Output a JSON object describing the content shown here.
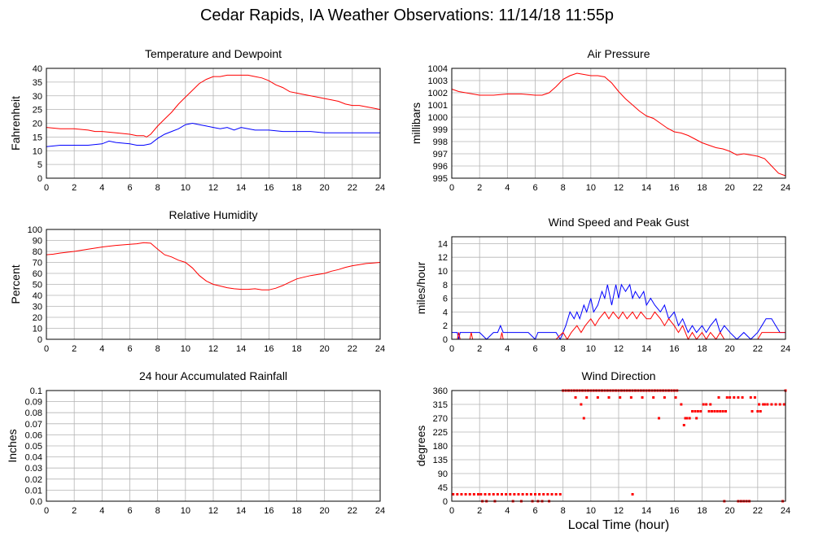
{
  "title": "Cedar Rapids, IA Weather Observations: 11/14/18 11:55p",
  "xlabel_common": "Local Time (hour)",
  "chart_data": [
    {
      "type": "line",
      "title": "Temperature and Dewpoint",
      "ylabel": "Fahrenheit",
      "xlabel": "",
      "xlim": [
        0,
        24
      ],
      "xticks": [
        0,
        2,
        4,
        6,
        8,
        10,
        12,
        14,
        16,
        18,
        20,
        22,
        24
      ],
      "ylim": [
        0,
        40
      ],
      "yticks": [
        0,
        5,
        10,
        15,
        20,
        25,
        30,
        35,
        40
      ],
      "grid": true,
      "series": [
        {
          "color": "#ff0000",
          "x": [
            0,
            1,
            2,
            3,
            3.5,
            4,
            5,
            6,
            6.5,
            7,
            7.2,
            7.5,
            8,
            8.5,
            9,
            9.5,
            10,
            10.5,
            11,
            11.5,
            12,
            12.5,
            13,
            13.5,
            14,
            14.5,
            15,
            15.5,
            16,
            16.5,
            17,
            17.5,
            18,
            18.5,
            19,
            19.5,
            20,
            20.5,
            21,
            21.5,
            22,
            22.5,
            23,
            23.5,
            24
          ],
          "y": [
            18.5,
            18,
            18,
            17.5,
            17,
            17,
            16.5,
            16,
            15.5,
            15.5,
            15,
            16,
            19,
            21.5,
            24,
            27,
            29.5,
            32,
            34.5,
            36,
            37,
            37,
            37.5,
            37.5,
            37.5,
            37.5,
            37,
            36.5,
            35.5,
            34,
            33,
            31.5,
            31,
            30.5,
            30,
            29.5,
            29,
            28.5,
            28,
            27,
            26.5,
            26.5,
            26,
            25.5,
            25
          ]
        },
        {
          "color": "#0000ff",
          "x": [
            0,
            1,
            2,
            3,
            4,
            4.5,
            5,
            6,
            6.5,
            7,
            7.5,
            8,
            8.5,
            9,
            9.5,
            10,
            10.5,
            11,
            11.5,
            12,
            12.5,
            13,
            13.5,
            14,
            14.5,
            15,
            16,
            17,
            18,
            19,
            20,
            21,
            22,
            23,
            24
          ],
          "y": [
            11.5,
            12,
            12,
            12,
            12.5,
            13.5,
            13,
            12.5,
            12,
            12,
            12.5,
            14.5,
            16,
            17,
            18,
            19.5,
            20,
            19.5,
            19,
            18.5,
            18,
            18.5,
            17.5,
            18.5,
            18,
            17.5,
            17.5,
            17,
            17,
            17,
            16.5,
            16.5,
            16.5,
            16.5,
            16.5
          ]
        }
      ]
    },
    {
      "type": "line",
      "title": "Air Pressure",
      "ylabel": "millibars",
      "xlabel": "",
      "xlim": [
        0,
        24
      ],
      "xticks": [
        0,
        2,
        4,
        6,
        8,
        10,
        12,
        14,
        16,
        18,
        20,
        22,
        24
      ],
      "ylim": [
        995,
        1004
      ],
      "yticks": [
        995,
        996,
        997,
        998,
        999,
        1000,
        1001,
        1002,
        1003,
        1004
      ],
      "grid": true,
      "series": [
        {
          "color": "#ff0000",
          "x": [
            0,
            0.5,
            1,
            2,
            3,
            4,
            5,
            6,
            6.5,
            7,
            7.5,
            8,
            8.5,
            9,
            9.5,
            10,
            10.5,
            11,
            11.5,
            12,
            12.5,
            13,
            13.5,
            14,
            14.5,
            15,
            15.5,
            16,
            16.5,
            17,
            17.5,
            18,
            18.5,
            19,
            19.5,
            20,
            20.5,
            21,
            21.5,
            22,
            22.5,
            23,
            23.5,
            24
          ],
          "y": [
            1002.3,
            1002.1,
            1002.0,
            1001.8,
            1001.8,
            1001.9,
            1001.9,
            1001.8,
            1001.8,
            1002.0,
            1002.5,
            1003.1,
            1003.4,
            1003.6,
            1003.5,
            1003.4,
            1003.4,
            1003.3,
            1002.8,
            1002.1,
            1001.5,
            1001.0,
            1000.5,
            1000.1,
            999.9,
            999.5,
            999.1,
            998.8,
            998.7,
            998.5,
            998.2,
            997.9,
            997.7,
            997.5,
            997.4,
            997.2,
            996.9,
            997.0,
            996.9,
            996.8,
            996.6,
            996.0,
            995.4,
            995.2
          ]
        }
      ]
    },
    {
      "type": "line",
      "title": "Relative Humidity",
      "ylabel": "Percent",
      "xlabel": "",
      "xlim": [
        0,
        24
      ],
      "xticks": [
        0,
        2,
        4,
        6,
        8,
        10,
        12,
        14,
        16,
        18,
        20,
        22,
        24
      ],
      "ylim": [
        0,
        100
      ],
      "yticks": [
        0,
        10,
        20,
        30,
        40,
        50,
        60,
        70,
        80,
        90,
        100
      ],
      "grid": true,
      "series": [
        {
          "color": "#ff0000",
          "x": [
            0,
            0.5,
            1,
            2,
            3,
            4,
            5,
            6,
            6.5,
            7,
            7.5,
            8,
            8.5,
            9,
            9.5,
            10,
            10.5,
            11,
            11.5,
            12,
            12.5,
            13,
            13.5,
            14,
            14.5,
            15,
            15.5,
            16,
            16.5,
            17,
            17.5,
            18,
            18.5,
            19,
            19.5,
            20,
            20.5,
            21,
            21.5,
            22,
            22.5,
            23,
            23.5,
            24
          ],
          "y": [
            77,
            77.5,
            78.5,
            80,
            82,
            84,
            85.5,
            86.5,
            87,
            88,
            87.5,
            82,
            77,
            75,
            72,
            70,
            65,
            58,
            53,
            50,
            48.5,
            47,
            46,
            45.5,
            45.5,
            46,
            45,
            45,
            46.5,
            49,
            52,
            55,
            56.5,
            58,
            59,
            60,
            62,
            63.5,
            65.5,
            67,
            68,
            69,
            69.5,
            70
          ]
        }
      ]
    },
    {
      "type": "line",
      "title": "Wind Speed and Peak Gust",
      "ylabel": "miles/hour",
      "xlabel": "",
      "xlim": [
        0,
        24
      ],
      "xticks": [
        0,
        2,
        4,
        6,
        8,
        10,
        12,
        14,
        16,
        18,
        20,
        22,
        24
      ],
      "ylim": [
        0,
        15
      ],
      "yticks": [
        0,
        2,
        4,
        6,
        8,
        10,
        12,
        14
      ],
      "grid": true,
      "series": [
        {
          "color": "#0000ff",
          "x": [
            0,
            0.4,
            0.5,
            0.6,
            1,
            1.5,
            2,
            2.5,
            3,
            3.3,
            3.5,
            3.7,
            4,
            4.5,
            5,
            5.5,
            6,
            6.2,
            6.5,
            7,
            7.5,
            7.8,
            8,
            8.2,
            8.5,
            8.8,
            9,
            9.2,
            9.5,
            9.7,
            10,
            10.2,
            10.5,
            10.8,
            11,
            11.2,
            11.5,
            11.8,
            12,
            12.2,
            12.5,
            12.8,
            13,
            13.2,
            13.5,
            13.8,
            14,
            14.3,
            14.6,
            15,
            15.3,
            15.6,
            16,
            16.3,
            16.6,
            17,
            17.3,
            17.6,
            18,
            18.3,
            18.6,
            19,
            19.3,
            19.6,
            20,
            20.5,
            21,
            21.5,
            22,
            22.3,
            22.6,
            23,
            23.3,
            23.6,
            24
          ],
          "y": [
            1,
            1,
            0,
            1,
            1,
            1,
            1,
            0,
            1,
            1,
            2,
            1,
            1,
            1,
            1,
            1,
            0,
            1,
            1,
            1,
            1,
            0,
            1,
            2,
            4,
            3,
            4,
            3,
            5,
            4,
            6,
            4,
            5,
            7,
            6,
            8,
            5,
            8,
            6,
            8,
            7,
            8,
            6,
            7,
            6,
            7,
            5,
            6,
            5,
            4,
            5,
            3,
            4,
            2,
            3,
            1,
            2,
            1,
            2,
            1,
            2,
            3,
            1,
            2,
            1,
            0,
            1,
            0,
            1,
            2,
            3,
            3,
            2,
            1,
            1
          ]
        },
        {
          "color": "#ff0000",
          "x": [
            0,
            0.4,
            0.5,
            0.6,
            1,
            1.3,
            1.4,
            1.5,
            2,
            3,
            3.5,
            3.6,
            3.7,
            4,
            5,
            6,
            7,
            7.5,
            8,
            8.3,
            8.6,
            9,
            9.3,
            9.6,
            10,
            10.3,
            10.6,
            11,
            11.3,
            11.6,
            12,
            12.3,
            12.6,
            13,
            13.3,
            13.6,
            14,
            14.3,
            14.6,
            15,
            15.3,
            15.6,
            16,
            16.3,
            16.6,
            17,
            17.3,
            17.6,
            18,
            18.3,
            18.6,
            19,
            19.3,
            19.6,
            20,
            21,
            22,
            22.3,
            22.6,
            23,
            23.5,
            24
          ],
          "y": [
            0,
            0,
            1,
            0,
            0,
            0,
            1,
            0,
            0,
            0,
            0,
            1,
            0,
            0,
            0,
            0,
            0,
            0,
            1,
            0,
            1,
            2,
            1,
            2,
            3,
            2,
            3,
            4,
            3,
            4,
            3,
            4,
            3,
            4,
            3,
            4,
            3,
            3,
            4,
            3,
            2,
            3,
            2,
            1,
            2,
            0,
            1,
            0,
            1,
            0,
            1,
            0,
            1,
            0,
            0,
            0,
            0,
            1,
            1,
            1,
            1,
            1
          ]
        }
      ]
    },
    {
      "type": "line",
      "title": "24 hour Accumulated Rainfall",
      "ylabel": "Inches",
      "xlabel": "",
      "xlim": [
        0,
        24
      ],
      "xticks": [
        0,
        2,
        4,
        6,
        8,
        10,
        12,
        14,
        16,
        18,
        20,
        22,
        24
      ],
      "ylim": [
        0,
        0.1
      ],
      "yticks": [
        0.0,
        0.01,
        0.02,
        0.03,
        0.04,
        0.05,
        0.06,
        0.07,
        0.08,
        0.09,
        0.1
      ],
      "ytick_labels": [
        "0.0",
        "0.01",
        "0.02",
        "0.03",
        "0.04",
        "0.05",
        "0.06",
        "0.07",
        "0.08",
        "0.09",
        "0.1"
      ],
      "grid": true,
      "series": [
        {
          "color": "#ff0000",
          "x": [
            0,
            24
          ],
          "y": [
            0,
            0
          ]
        }
      ]
    },
    {
      "type": "scatter",
      "title": "Wind Direction",
      "ylabel": "degrees",
      "xlabel": "Local Time (hour)",
      "xlim": [
        0,
        24
      ],
      "xticks": [
        0,
        2,
        4,
        6,
        8,
        10,
        12,
        14,
        16,
        18,
        20,
        22,
        24
      ],
      "ylim": [
        0,
        360
      ],
      "yticks": [
        0,
        45,
        90,
        135,
        180,
        225,
        270,
        315,
        360
      ],
      "grid": true,
      "series": [
        {
          "color": "#ff0000",
          "x": [
            0.1,
            0.4,
            0.7,
            1.0,
            1.3,
            1.6,
            1.9,
            2.1,
            2.4,
            2.7,
            3.0,
            3.3,
            3.6,
            3.9,
            4.2,
            4.5,
            4.8,
            5.1,
            5.4,
            5.7,
            6.0,
            6.3,
            6.6,
            6.9,
            7.2,
            7.5,
            7.8,
            2.2,
            2.5,
            3.1,
            4.4,
            5.0,
            5.8,
            6.2,
            6.5,
            7.0,
            8.0,
            8.2,
            8.4,
            8.6,
            8.8,
            9.0,
            9.2,
            9.4,
            9.6,
            9.8,
            10.0,
            10.2,
            10.4,
            10.6,
            10.8,
            11.0,
            11.2,
            11.4,
            11.6,
            11.8,
            12.0,
            12.2,
            12.4,
            12.6,
            12.8,
            13.0,
            13.2,
            13.4,
            13.6,
            13.8,
            14.0,
            14.2,
            14.4,
            14.6,
            14.8,
            15.0,
            15.2,
            15.4,
            15.6,
            15.8,
            16.0,
            16.2,
            8.9,
            9.3,
            9.7,
            10.5,
            11.3,
            12.1,
            12.9,
            13.7,
            14.5,
            15.3,
            16.1,
            9.5,
            14.9,
            13.0,
            16.5,
            16.7,
            16.9,
            17.1,
            17.3,
            17.5,
            17.7,
            17.9,
            18.1,
            18.3,
            18.5,
            18.7,
            18.9,
            19.1,
            19.3,
            19.5,
            19.7,
            16.8,
            17.6,
            18.6,
            19.2,
            19.8,
            20.0,
            20.3,
            20.6,
            20.9,
            21.5,
            21.8,
            22.1,
            22.4,
            22.7,
            23.0,
            23.3,
            23.6,
            23.9,
            19.6,
            20.6,
            20.8,
            21.0,
            21.2,
            21.4,
            21.6,
            22.0,
            22.2,
            22.5,
            23.8,
            24.0
          ],
          "y": [
            22.5,
            22.5,
            22.5,
            22.5,
            22.5,
            22.5,
            22.5,
            22.5,
            22.5,
            22.5,
            22.5,
            22.5,
            22.5,
            22.5,
            22.5,
            22.5,
            22.5,
            22.5,
            22.5,
            22.5,
            22.5,
            22.5,
            22.5,
            22.5,
            22.5,
            22.5,
            22.5,
            0,
            0,
            0,
            0,
            0,
            0,
            0,
            0,
            0,
            360,
            360,
            360,
            360,
            360,
            360,
            360,
            360,
            360,
            360,
            360,
            360,
            360,
            360,
            360,
            360,
            360,
            360,
            360,
            360,
            360,
            360,
            360,
            360,
            360,
            360,
            360,
            360,
            360,
            360,
            360,
            360,
            360,
            360,
            360,
            360,
            360,
            360,
            360,
            360,
            360,
            360,
            337.5,
            315,
            337.5,
            337.5,
            337.5,
            337.5,
            337.5,
            337.5,
            337.5,
            337.5,
            337.5,
            270,
            270,
            22.5,
            315,
            247.5,
            270,
            270,
            292.5,
            292.5,
            292.5,
            292.5,
            315,
            315,
            292.5,
            292.5,
            292.5,
            292.5,
            292.5,
            292.5,
            292.5,
            270,
            270,
            315,
            337.5,
            337.5,
            337.5,
            337.5,
            337.5,
            337.5,
            337.5,
            337.5,
            315,
            315,
            315,
            315,
            315,
            315,
            315,
            0,
            0,
            0,
            0,
            0,
            0,
            292.5,
            292.5,
            292.5,
            315,
            0,
            360
          ]
        }
      ]
    }
  ]
}
